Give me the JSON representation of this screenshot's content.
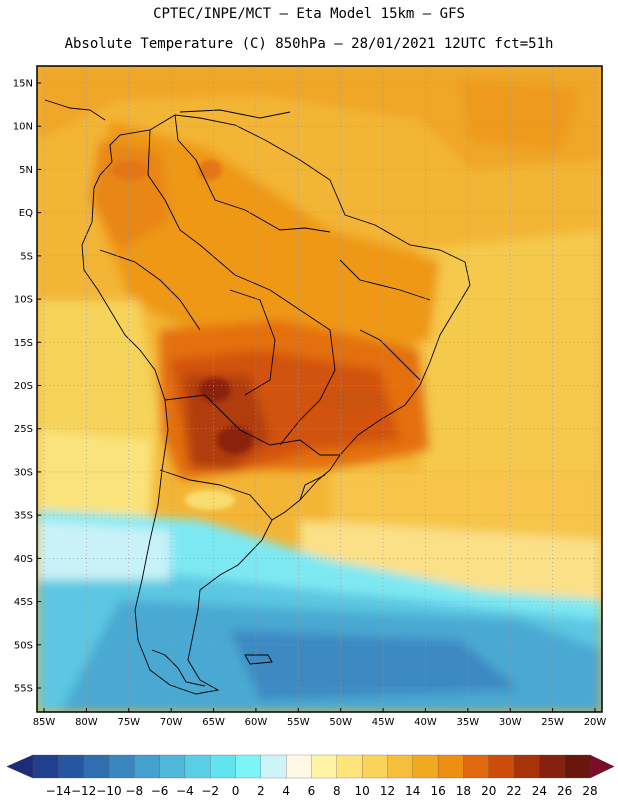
{
  "header": {
    "line1": "CPTEC/INPE/MCT –  Eta Model 15km – GFS",
    "line2": "Absolute Temperature (C) 850hPa – 28/01/2021 12UTC fct=51h"
  },
  "map": {
    "lat_labels": [
      "15N",
      "10N",
      "5N",
      "EQ",
      "5S",
      "10S",
      "15S",
      "20S",
      "25S",
      "30S",
      "35S",
      "40S",
      "45S",
      "50S",
      "55S"
    ],
    "lon_labels": [
      "85W",
      "80W",
      "75W",
      "70W",
      "65W",
      "60W",
      "55W",
      "50W",
      "45W",
      "40W",
      "35W",
      "30W",
      "25W",
      "20W"
    ],
    "lat_values": [
      15,
      10,
      5,
      0,
      -5,
      -10,
      -15,
      -20,
      -25,
      -30,
      -35,
      -40,
      -45,
      -50,
      -55
    ],
    "lon_values": [
      -85,
      -80,
      -75,
      -70,
      -65,
      -60,
      -55,
      -50,
      -45,
      -40,
      -35,
      -30,
      -25,
      -20
    ],
    "grid": "dotted"
  },
  "colorbar": {
    "labels": [
      "-14",
      "-12",
      "-10",
      "-8",
      "-6",
      "-4",
      "-2",
      "0",
      "2",
      "4",
      "6",
      "8",
      "10",
      "12",
      "14",
      "16",
      "18",
      "20",
      "22",
      "24",
      "26",
      "28"
    ],
    "colors": [
      "#1f3f8f",
      "#2656a0",
      "#2f6fb0",
      "#3a86c0",
      "#44a0cd",
      "#4fb8da",
      "#58cfe6",
      "#62e4f0",
      "#7df5f8",
      "#cdf4f8",
      "#fff8e6",
      "#fff3a6",
      "#fde47b",
      "#fad35a",
      "#f5bf3c",
      "#f2a81f",
      "#ee8f14",
      "#e2690e",
      "#cc4d0a",
      "#a8320a",
      "#86200c",
      "#6a160d"
    ],
    "left_arrow_color": "#1d2c78",
    "right_arrow_color": "#7a0c2a"
  }
}
